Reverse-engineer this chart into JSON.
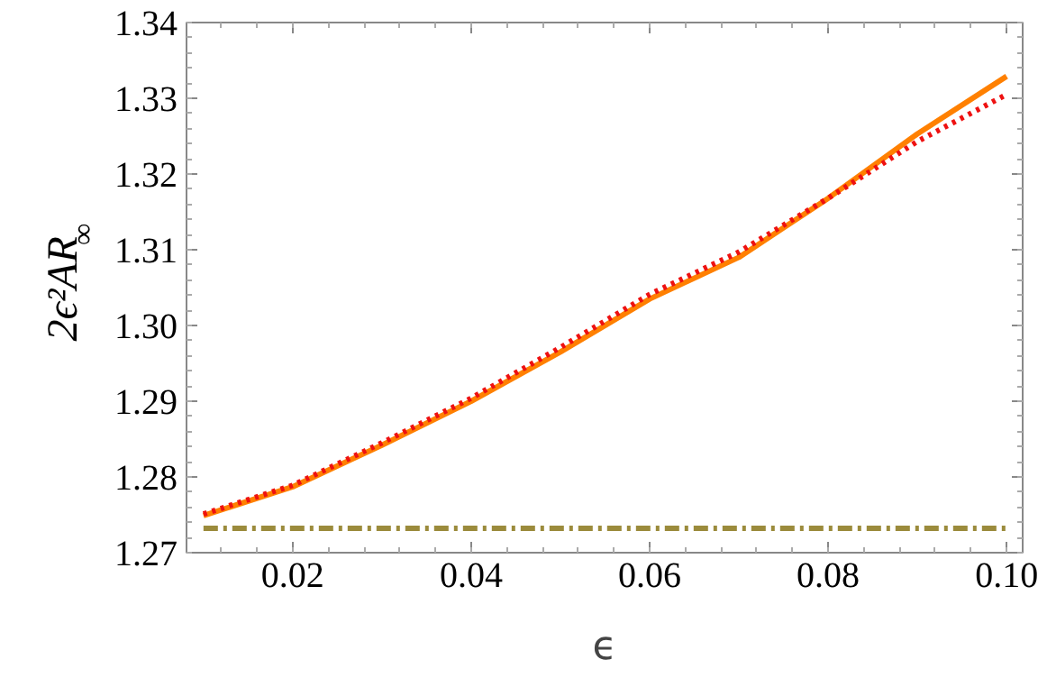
{
  "chart_data": {
    "type": "line",
    "xlabel": "ϵ",
    "ylabel": "2ϵ²AR$_{∞}$",
    "xlim": [
      0.0081,
      0.1018
    ],
    "ylim": [
      1.27,
      1.34
    ],
    "xticks": [
      {
        "value": 0.02,
        "label": "0.02"
      },
      {
        "value": 0.04,
        "label": "0.04"
      },
      {
        "value": 0.06,
        "label": "0.06"
      },
      {
        "value": 0.08,
        "label": "0.08"
      },
      {
        "value": 0.1,
        "label": "0.10"
      }
    ],
    "yticks": [
      {
        "value": 1.27,
        "label": "1.27"
      },
      {
        "value": 1.28,
        "label": "1.28"
      },
      {
        "value": 1.29,
        "label": "1.29"
      },
      {
        "value": 1.3,
        "label": "1.30"
      },
      {
        "value": 1.31,
        "label": "1.31"
      },
      {
        "value": 1.32,
        "label": "1.32"
      },
      {
        "value": 1.33,
        "label": "1.33"
      },
      {
        "value": 1.34,
        "label": "1.34"
      }
    ],
    "x": [
      0.01,
      0.02,
      0.03,
      0.04,
      0.05,
      0.06,
      0.07,
      0.08,
      0.09,
      0.1
    ],
    "series": [
      {
        "color": "#ff8000",
        "line_style": "solid",
        "values": [
          1.2749,
          1.2787,
          1.2842,
          1.29,
          1.2965,
          1.3035,
          1.309,
          1.3168,
          1.3253,
          1.3329
        ]
      },
      {
        "color": "#ee1111",
        "line_style": "dotted",
        "values": [
          1.2751,
          1.2789,
          1.2845,
          1.2904,
          1.2971,
          1.3041,
          1.3097,
          1.3168,
          1.3243,
          1.3305
        ]
      },
      {
        "color": "#9b8b3c",
        "line_style": "dashdot",
        "values": [
          1.2732,
          1.2732,
          1.2732,
          1.2732,
          1.2732,
          1.2732,
          1.2732,
          1.2732,
          1.2732,
          1.2732
        ]
      }
    ],
    "grid": false
  }
}
